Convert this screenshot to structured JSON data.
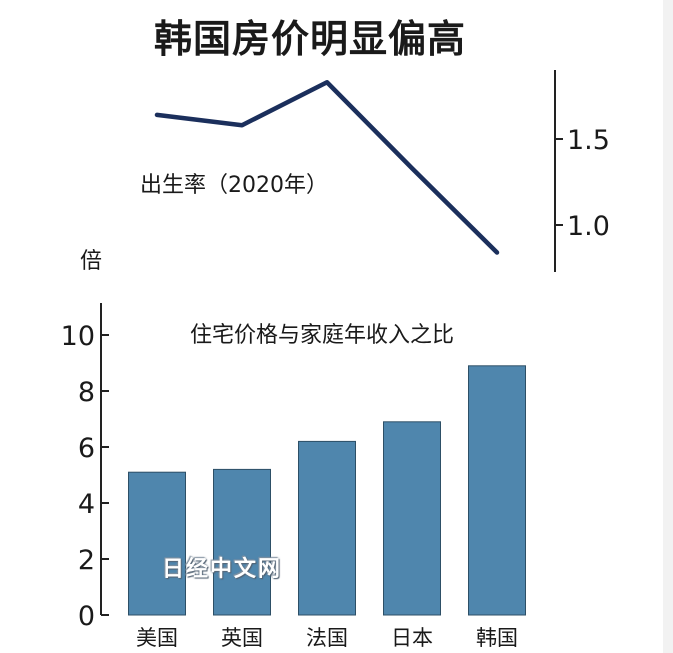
{
  "title": "韩国房价明显偏高",
  "watermark": "日经中文网",
  "colors": {
    "line": "#1b2f5c",
    "bar": "#4f86ad",
    "bar_stroke": "#2d4f66",
    "axis": "#222222"
  },
  "chart_data": [
    {
      "type": "line",
      "title": "",
      "annotation": "出生率（2020年）",
      "categories": [
        "美国",
        "英国",
        "法国",
        "日本",
        "韩国"
      ],
      "values": [
        1.64,
        1.58,
        1.83,
        1.33,
        0.84
      ],
      "ylabel": "",
      "ylim": [
        0.7,
        1.9
      ],
      "yticks": [
        1.0,
        1.5
      ],
      "ytick_labels": [
        "1.0",
        "1.5"
      ],
      "axis_side": "right",
      "grid": false,
      "legend": "none"
    },
    {
      "type": "bar",
      "title": "住宅价格与家庭年收入之比",
      "categories": [
        "美国",
        "英国",
        "法国",
        "日本",
        "韩国"
      ],
      "values": [
        5.1,
        5.2,
        6.2,
        6.9,
        8.9
      ],
      "ylabel": "倍",
      "ylim": [
        0,
        11
      ],
      "yticks": [
        0,
        2,
        4,
        6,
        8,
        10
      ],
      "ytick_labels": [
        "0",
        "2",
        "4",
        "6",
        "8",
        "10"
      ],
      "grid": false,
      "legend": "none"
    }
  ]
}
